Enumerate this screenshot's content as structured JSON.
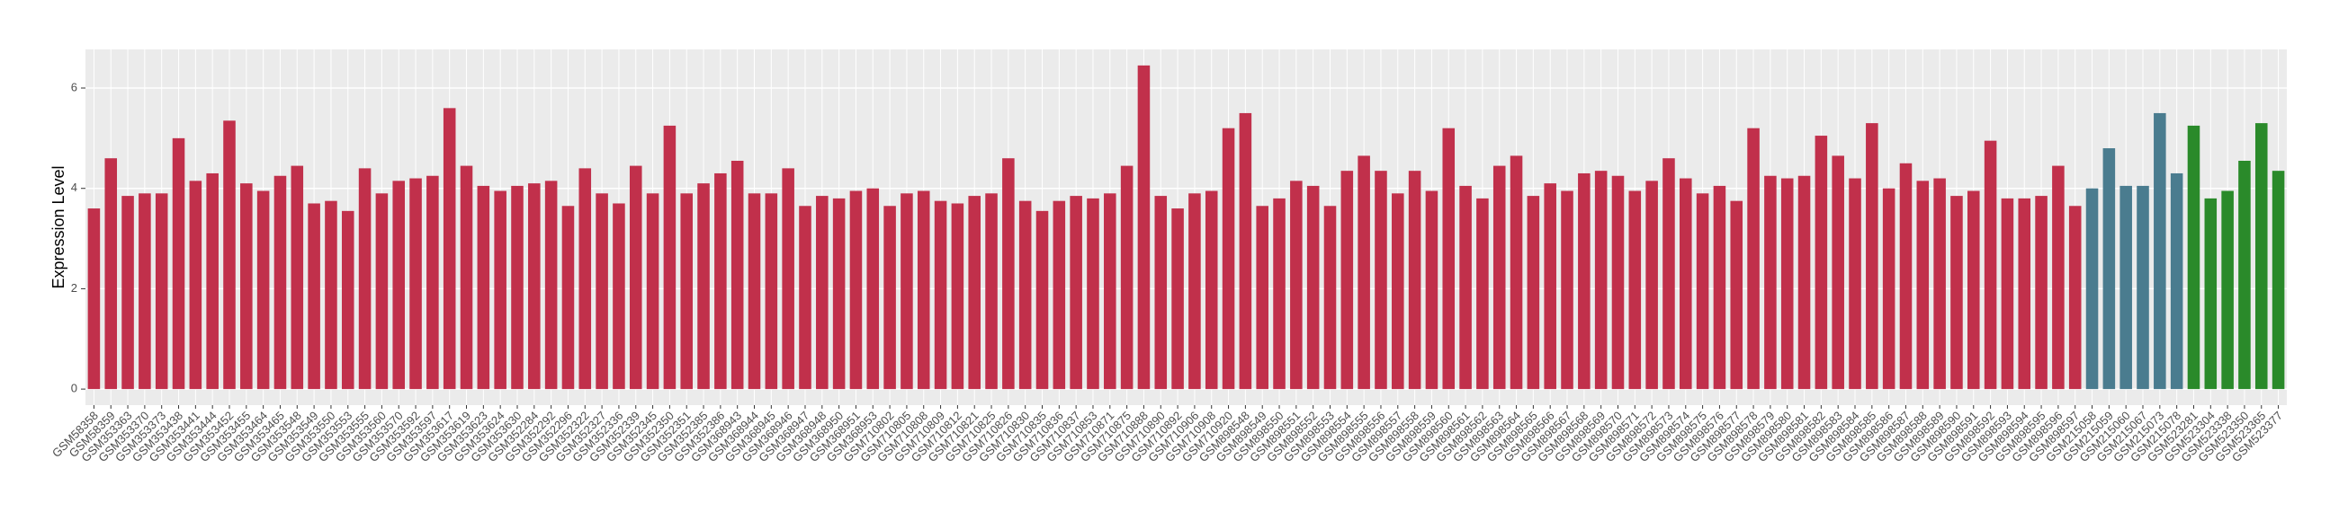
{
  "chart_data": {
    "type": "bar",
    "y_label": "Expression Level",
    "categories": [
      "GSM58358",
      "GSM58359",
      "GSM353363",
      "GSM353370",
      "GSM353373",
      "GSM353438",
      "GSM353441",
      "GSM353444",
      "GSM353452",
      "GSM353455",
      "GSM353464",
      "GSM353465",
      "GSM353548",
      "GSM353549",
      "GSM353550",
      "GSM353553",
      "GSM353555",
      "GSM353560",
      "GSM353570",
      "GSM353592",
      "GSM353597",
      "GSM353617",
      "GSM353619",
      "GSM353623",
      "GSM353624",
      "GSM353630",
      "GSM352284",
      "GSM352292",
      "GSM352296",
      "GSM352322",
      "GSM352327",
      "GSM352336",
      "GSM352339",
      "GSM352345",
      "GSM352350",
      "GSM352351",
      "GSM352385",
      "GSM352386",
      "GSM368943",
      "GSM368944",
      "GSM368945",
      "GSM368946",
      "GSM368947",
      "GSM368948",
      "GSM368950",
      "GSM368951",
      "GSM368953",
      "GSM710802",
      "GSM710805",
      "GSM710808",
      "GSM710809",
      "GSM710812",
      "GSM710821",
      "GSM710825",
      "GSM710826",
      "GSM710830",
      "GSM710835",
      "GSM710836",
      "GSM710837",
      "GSM710853",
      "GSM710871",
      "GSM710875",
      "GSM710888",
      "GSM710890",
      "GSM710892",
      "GSM710906",
      "GSM710908",
      "GSM710920",
      "GSM898548",
      "GSM898549",
      "GSM898550",
      "GSM898551",
      "GSM898552",
      "GSM898553",
      "GSM898554",
      "GSM898555",
      "GSM898556",
      "GSM898557",
      "GSM898558",
      "GSM898559",
      "GSM898560",
      "GSM898561",
      "GSM898562",
      "GSM898563",
      "GSM898564",
      "GSM898565",
      "GSM898566",
      "GSM898567",
      "GSM898568",
      "GSM898569",
      "GSM898570",
      "GSM898571",
      "GSM898572",
      "GSM898573",
      "GSM898574",
      "GSM898575",
      "GSM898576",
      "GSM898577",
      "GSM898578",
      "GSM898579",
      "GSM898580",
      "GSM898581",
      "GSM898582",
      "GSM898583",
      "GSM898584",
      "GSM898585",
      "GSM898586",
      "GSM898587",
      "GSM898588",
      "GSM898589",
      "GSM898590",
      "GSM898591",
      "GSM898592",
      "GSM898593",
      "GSM898594",
      "GSM898595",
      "GSM898596",
      "GSM898597",
      "GSM215058",
      "GSM215059",
      "GSM215060",
      "GSM215067",
      "GSM215073",
      "GSM215078",
      "GSM523281",
      "GSM523304",
      "GSM523338",
      "GSM523350",
      "GSM523365",
      "GSM523377"
    ],
    "values": [
      3.6,
      4.6,
      3.85,
      3.9,
      3.9,
      5.0,
      4.15,
      4.3,
      5.35,
      4.1,
      3.95,
      4.25,
      4.45,
      3.7,
      3.75,
      3.55,
      4.4,
      3.9,
      4.15,
      4.2,
      4.25,
      5.6,
      4.45,
      4.05,
      3.95,
      4.05,
      4.1,
      4.15,
      3.65,
      4.4,
      3.9,
      3.7,
      4.45,
      3.9,
      5.25,
      3.9,
      4.1,
      4.3,
      4.55,
      3.9,
      3.9,
      4.4,
      3.65,
      3.85,
      3.8,
      3.95,
      4.0,
      3.65,
      3.9,
      3.95,
      3.75,
      3.7,
      3.85,
      3.9,
      4.6,
      3.75,
      3.55,
      3.75,
      3.85,
      3.8,
      3.9,
      4.45,
      6.45,
      3.85,
      3.6,
      3.9,
      3.95,
      5.2,
      5.5,
      3.65,
      3.8,
      4.15,
      4.05,
      3.65,
      4.35,
      4.65,
      4.35,
      3.9,
      4.35,
      3.95,
      5.2,
      4.05,
      3.8,
      4.45,
      4.65,
      3.85,
      4.1,
      3.95,
      4.3,
      4.35,
      4.25,
      3.95,
      4.15,
      4.6,
      4.2,
      3.9,
      4.05,
      3.75,
      5.2,
      4.25,
      4.2,
      4.25,
      5.05,
      4.65,
      4.2,
      5.3,
      4.0,
      4.5,
      4.15,
      4.2,
      3.85,
      3.95,
      4.95,
      3.8,
      3.8,
      3.85,
      4.45,
      3.65,
      4.0,
      4.8,
      4.05,
      4.05,
      5.5,
      4.3,
      5.25,
      3.8,
      3.95,
      4.55,
      5.3,
      4.35
    ],
    "colors": [
      "#c1304b",
      "#c1304b",
      "#c1304b",
      "#c1304b",
      "#c1304b",
      "#c1304b",
      "#c1304b",
      "#c1304b",
      "#c1304b",
      "#c1304b",
      "#c1304b",
      "#c1304b",
      "#c1304b",
      "#c1304b",
      "#c1304b",
      "#c1304b",
      "#c1304b",
      "#c1304b",
      "#c1304b",
      "#c1304b",
      "#c1304b",
      "#c1304b",
      "#c1304b",
      "#c1304b",
      "#c1304b",
      "#c1304b",
      "#c1304b",
      "#c1304b",
      "#c1304b",
      "#c1304b",
      "#c1304b",
      "#c1304b",
      "#c1304b",
      "#c1304b",
      "#c1304b",
      "#c1304b",
      "#c1304b",
      "#c1304b",
      "#c1304b",
      "#c1304b",
      "#c1304b",
      "#c1304b",
      "#c1304b",
      "#c1304b",
      "#c1304b",
      "#c1304b",
      "#c1304b",
      "#c1304b",
      "#c1304b",
      "#c1304b",
      "#c1304b",
      "#c1304b",
      "#c1304b",
      "#c1304b",
      "#c1304b",
      "#c1304b",
      "#c1304b",
      "#c1304b",
      "#c1304b",
      "#c1304b",
      "#c1304b",
      "#c1304b",
      "#c1304b",
      "#c1304b",
      "#c1304b",
      "#c1304b",
      "#c1304b",
      "#c1304b",
      "#c1304b",
      "#c1304b",
      "#c1304b",
      "#c1304b",
      "#c1304b",
      "#c1304b",
      "#c1304b",
      "#c1304b",
      "#c1304b",
      "#c1304b",
      "#c1304b",
      "#c1304b",
      "#c1304b",
      "#c1304b",
      "#c1304b",
      "#c1304b",
      "#c1304b",
      "#c1304b",
      "#c1304b",
      "#c1304b",
      "#c1304b",
      "#c1304b",
      "#c1304b",
      "#c1304b",
      "#c1304b",
      "#c1304b",
      "#c1304b",
      "#c1304b",
      "#c1304b",
      "#c1304b",
      "#c1304b",
      "#c1304b",
      "#c1304b",
      "#c1304b",
      "#c1304b",
      "#c1304b",
      "#c1304b",
      "#c1304b",
      "#c1304b",
      "#c1304b",
      "#c1304b",
      "#c1304b",
      "#c1304b",
      "#c1304b",
      "#c1304b",
      "#c1304b",
      "#c1304b",
      "#c1304b",
      "#c1304b",
      "#c1304b",
      "#4a7c8f",
      "#4a7c8f",
      "#4a7c8f",
      "#4a7c8f",
      "#4a7c8f",
      "#4a7c8f",
      "#2a8a2a",
      "#2a8a2a",
      "#2a8a2a",
      "#2a8a2a",
      "#2a8a2a",
      "#2a8a2a"
    ],
    "ylim": [
      -0.32,
      6.77
    ],
    "yticks": [
      0,
      2,
      4,
      6
    ],
    "grid": true
  }
}
